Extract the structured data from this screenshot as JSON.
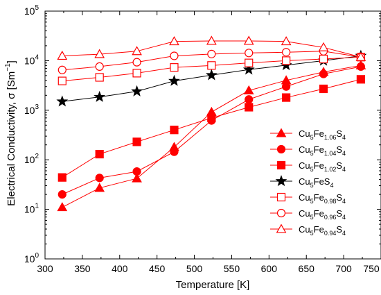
{
  "chart_data": {
    "type": "line",
    "xlabel": "Temperature [K]",
    "ylabel": "Electrical Conductivity, σ [Sm⁻¹]",
    "ylabel_parts": {
      "main": "Electrical Conductivity, σ [Sm",
      "sup": "−1",
      "end": "]"
    },
    "xlim": [
      300,
      750
    ],
    "ylim": [
      1,
      100000
    ],
    "yscale": "log",
    "grid": false,
    "legend_position": "bottom-right",
    "x_ticks": [
      300,
      350,
      400,
      450,
      500,
      550,
      600,
      650,
      700,
      750
    ],
    "x_tick_labels": [
      "300",
      "350",
      "400",
      "450",
      "500",
      "550",
      "600",
      "650",
      "700",
      "750"
    ],
    "y_ticks": [
      {
        "value": 1,
        "base": "10",
        "exp": "0"
      },
      {
        "value": 10,
        "base": "10",
        "exp": "1"
      },
      {
        "value": 100,
        "base": "10",
        "exp": "2"
      },
      {
        "value": 1000,
        "base": "10",
        "exp": "3"
      },
      {
        "value": 10000,
        "base": "10",
        "exp": "4"
      },
      {
        "value": 100000,
        "base": "10",
        "exp": "5"
      }
    ],
    "series": [
      {
        "name": "Cu5Fe1.06S4",
        "label_parts": [
          "Cu",
          "5",
          "Fe",
          "1.06",
          "S",
          "4"
        ],
        "marker": "triangle",
        "filled": true,
        "color": "#ff0000",
        "x": [
          323,
          373,
          423,
          473,
          523,
          573,
          623,
          673,
          723
        ],
        "y": [
          11,
          27,
          42,
          180,
          920,
          2500,
          4000,
          5900,
          8000
        ]
      },
      {
        "name": "Cu5Fe1.04S4",
        "label_parts": [
          "Cu",
          "5",
          "Fe",
          "1.04",
          "S",
          "4"
        ],
        "marker": "circle",
        "filled": true,
        "color": "#ff0000",
        "x": [
          323,
          373,
          423,
          473,
          523,
          573,
          623,
          673,
          723
        ],
        "y": [
          20,
          43,
          58,
          145,
          620,
          1650,
          3000,
          5400,
          7600
        ]
      },
      {
        "name": "Cu5Fe1.02S4",
        "label_parts": [
          "Cu",
          "5",
          "Fe",
          "1.02",
          "S",
          "4"
        ],
        "marker": "square",
        "filled": true,
        "color": "#ff0000",
        "x": [
          323,
          373,
          423,
          473,
          523,
          573,
          623,
          673,
          723
        ],
        "y": [
          44,
          130,
          230,
          400,
          700,
          1150,
          1800,
          2700,
          4200
        ]
      },
      {
        "name": "Cu5FeS4",
        "label_parts": [
          "Cu",
          "5",
          "FeS",
          "",
          "",
          "4"
        ],
        "marker": "star",
        "filled": true,
        "color": "#000000",
        "x": [
          323,
          373,
          423,
          473,
          523,
          573,
          623,
          673,
          723
        ],
        "y": [
          1500,
          1850,
          2400,
          3900,
          5100,
          6600,
          8100,
          10000,
          12500
        ]
      },
      {
        "name": "Cu5Fe0.98S4",
        "label_parts": [
          "Cu",
          "5",
          "Fe",
          "0.98",
          "S",
          "4"
        ],
        "marker": "square",
        "filled": false,
        "color": "#ff0000",
        "x": [
          323,
          373,
          423,
          473,
          523,
          573,
          623,
          673,
          723
        ],
        "y": [
          3900,
          4600,
          5600,
          7300,
          8000,
          9000,
          10000,
          10800,
          11800
        ]
      },
      {
        "name": "Cu5Fe0.96S4",
        "label_parts": [
          "Cu",
          "5",
          "Fe",
          "0.96",
          "S",
          "4"
        ],
        "marker": "circle",
        "filled": false,
        "color": "#ff0000",
        "x": [
          323,
          373,
          423,
          473,
          523,
          573,
          623,
          673,
          723
        ],
        "y": [
          6500,
          7600,
          9300,
          12500,
          13600,
          14300,
          14800,
          15500,
          11800
        ]
      },
      {
        "name": "Cu5Fe0.94S4",
        "label_parts": [
          "Cu",
          "5",
          "Fe",
          "0.94",
          "S",
          "4"
        ],
        "marker": "triangle",
        "filled": false,
        "color": "#ff0000",
        "x": [
          323,
          373,
          423,
          473,
          523,
          573,
          623,
          673,
          723
        ],
        "y": [
          12500,
          13500,
          15500,
          24500,
          25000,
          25000,
          24500,
          18500,
          11800
        ]
      }
    ]
  }
}
